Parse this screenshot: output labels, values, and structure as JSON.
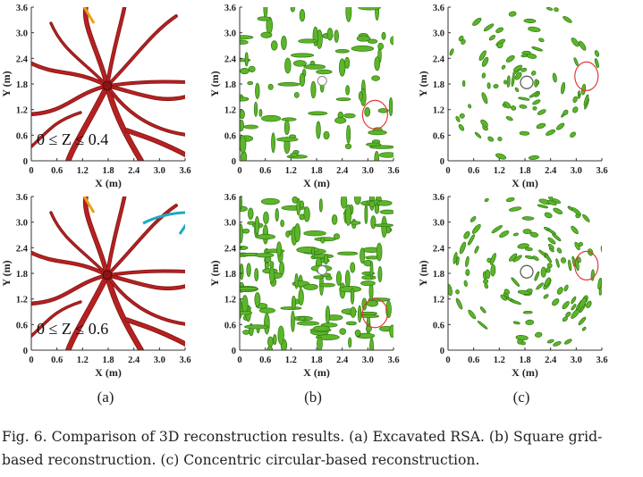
{
  "figure": {
    "panels": [
      {
        "id": "a",
        "label": "(a)",
        "description": "Excavated RSA"
      },
      {
        "id": "b",
        "label": "(b)",
        "description": "Square grid-based reconstruction"
      },
      {
        "id": "c",
        "label": "(c)",
        "description": "Concentric circular-based reconstruction"
      }
    ],
    "rows": [
      {
        "z_range": "0 ≤ Z ≤ 0.4"
      },
      {
        "z_range": "0 ≤ Z ≤ 0.6"
      }
    ],
    "axes": {
      "xlabel": "X (m)",
      "ylabel": "Y (m)",
      "x_ticks": [
        "0",
        "0.6",
        "1.2",
        "1.8",
        "2.4",
        "3.0",
        "3.6"
      ],
      "y_ticks": [
        "0",
        "0.6",
        "1.2",
        "1.8",
        "2.4",
        "3.0",
        "3.6"
      ],
      "xlim": [
        0,
        3.6
      ],
      "ylim": [
        0,
        3.6
      ]
    },
    "colors": {
      "root": "#b52121",
      "root_highlight": "#e8a21a",
      "cyan_root": "#1fa8c4",
      "green": "#5db52a",
      "green_dark": "#2f7a12",
      "circle": "#e03a3a"
    }
  },
  "caption": {
    "fig_label": "Fig. 6.",
    "text": "Comparison of 3D reconstruction results. (a) Excavated RSA. (b) Square grid-based reconstruction. (c) Concentric circular-based reconstruction."
  }
}
